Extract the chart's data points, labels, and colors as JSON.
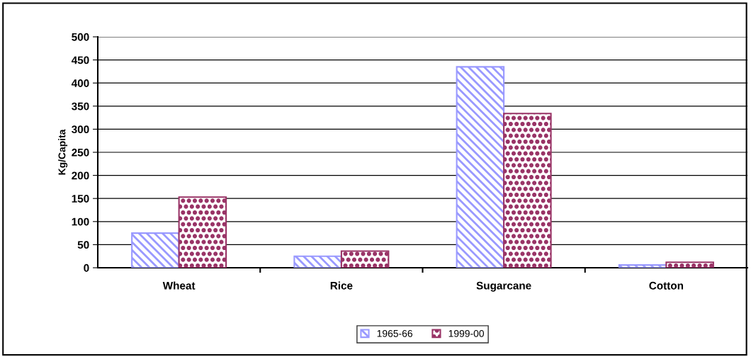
{
  "chart_data": {
    "type": "bar",
    "ylabel": "Kg/Capita",
    "categories": [
      "Wheat",
      "Rice",
      "Sugarcane",
      "Cotton"
    ],
    "series": [
      {
        "name": "1965-66",
        "color": "#9999ff",
        "values": [
          75,
          25,
          435,
          6
        ]
      },
      {
        "name": "1999-00",
        "color": "#993366",
        "values": [
          153,
          36,
          334,
          12
        ]
      }
    ],
    "ylim": [
      0,
      500
    ],
    "yticks": [
      0,
      50,
      100,
      150,
      200,
      250,
      300,
      350,
      400,
      450,
      500
    ],
    "grid": "y",
    "legend": "bottom"
  }
}
